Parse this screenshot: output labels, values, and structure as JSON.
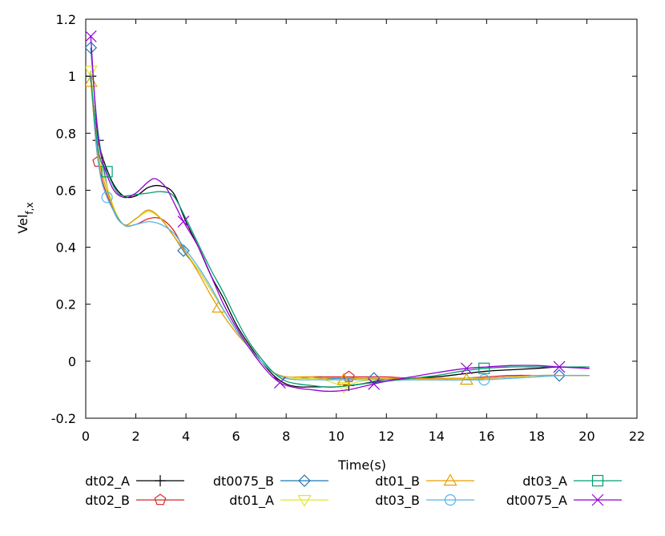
{
  "chart_data": {
    "type": "line",
    "title": "",
    "xlabel": "Time(s)",
    "ylabel_main": "Vel",
    "ylabel_sub": "f,x",
    "xlim": [
      0,
      22
    ],
    "ylim": [
      -0.2,
      1.2
    ],
    "x_ticks": [
      0,
      2,
      4,
      6,
      8,
      10,
      12,
      14,
      16,
      18,
      20,
      22
    ],
    "y_ticks": [
      -0.2,
      0,
      0.2,
      0.4,
      0.6,
      0.8,
      1.0,
      1.2
    ],
    "x_tick_labels": [
      "0",
      "2",
      "4",
      "6",
      "8",
      "10",
      "12",
      "14",
      "16",
      "18",
      "20",
      "22"
    ],
    "y_tick_labels": [
      "-0.2",
      "0",
      "0.2",
      "0.4",
      "0.6",
      "0.8",
      "1",
      "1.2"
    ],
    "grid": false,
    "legend_position": "bottom",
    "series": [
      {
        "name": "dt02_A",
        "color": "#000000",
        "marker": "plus",
        "x": [
          0.2,
          0.5,
          1.0,
          1.5,
          2.0,
          2.5,
          3.0,
          3.5,
          4.0,
          4.5,
          5.0,
          5.5,
          6.0,
          6.5,
          7.0,
          7.5,
          8.0,
          8.5,
          9.0,
          9.5,
          10.0,
          10.5,
          11.0,
          12.0,
          13.0,
          14.0,
          15.0,
          16.0,
          17.0,
          18.0,
          19.0,
          20.1
        ],
        "y": [
          1.0,
          0.775,
          0.64,
          0.58,
          0.58,
          0.61,
          0.615,
          0.59,
          0.49,
          0.4,
          0.3,
          0.22,
          0.13,
          0.06,
          0.0,
          -0.05,
          -0.08,
          -0.09,
          -0.09,
          -0.09,
          -0.09,
          -0.085,
          -0.08,
          -0.065,
          -0.06,
          -0.055,
          -0.045,
          -0.035,
          -0.03,
          -0.025,
          -0.02,
          -0.025
        ],
        "markers_x": [
          0.2,
          0.5,
          10.5
        ]
      },
      {
        "name": "dt02_B",
        "color": "#d62728",
        "marker": "pentagon",
        "x": [
          0.2,
          0.5,
          1.0,
          1.5,
          2.0,
          2.5,
          3.0,
          3.5,
          4.0,
          4.5,
          5.0,
          5.5,
          6.0,
          6.5,
          7.0,
          7.5,
          8.0,
          8.5,
          9.0,
          9.5,
          10.0,
          10.5,
          11.0,
          12.0,
          13.0,
          14.0,
          15.0,
          16.0,
          17.0,
          18.0,
          19.0,
          20.1
        ],
        "y": [
          1.0,
          0.7,
          0.55,
          0.48,
          0.48,
          0.5,
          0.5,
          0.46,
          0.38,
          0.32,
          0.25,
          0.18,
          0.11,
          0.05,
          0.0,
          -0.04,
          -0.06,
          -0.06,
          -0.055,
          -0.055,
          -0.055,
          -0.055,
          -0.055,
          -0.055,
          -0.06,
          -0.06,
          -0.06,
          -0.055,
          -0.05,
          -0.05,
          -0.05,
          -0.05
        ],
        "markers_x": [
          0.5,
          10.5
        ]
      },
      {
        "name": "dt0075_B",
        "color": "#1f77b4",
        "marker": "diamond",
        "x": [
          0.2,
          0.5,
          1.0,
          1.5,
          2.0,
          2.5,
          3.0,
          3.5,
          4.0,
          4.5,
          5.0,
          5.5,
          6.0,
          6.5,
          7.0,
          7.5,
          8.0,
          8.5,
          9.0,
          9.5,
          10.0,
          10.5,
          11.0,
          11.5,
          12.0,
          13.0,
          14.0,
          15.0,
          16.0,
          17.0,
          18.0,
          19.0,
          20.1
        ],
        "y": [
          1.1,
          0.8,
          0.56,
          0.48,
          0.5,
          0.53,
          0.5,
          0.44,
          0.375,
          0.32,
          0.25,
          0.18,
          0.11,
          0.05,
          0.0,
          -0.04,
          -0.06,
          -0.06,
          -0.06,
          -0.06,
          -0.06,
          -0.06,
          -0.06,
          -0.06,
          -0.065,
          -0.065,
          -0.065,
          -0.065,
          -0.06,
          -0.055,
          -0.05,
          -0.05,
          -0.05
        ],
        "markers_x": [
          0.2,
          3.9,
          11.5,
          18.9
        ]
      },
      {
        "name": "dt01_A",
        "color": "#e5e52e",
        "marker": "triangle-down",
        "x": [
          0.2,
          0.5,
          1.0,
          1.5,
          2.0,
          2.5,
          3.0,
          3.5,
          4.0,
          4.5,
          5.0,
          5.5,
          6.0,
          6.5,
          7.0,
          7.5,
          8.0,
          8.5,
          9.0,
          9.5,
          10.0,
          10.3,
          10.6,
          11.0,
          12.0,
          13.0,
          14.0,
          15.0,
          16.0,
          17.0,
          18.0,
          19.0,
          20.1
        ],
        "y": [
          1.02,
          0.75,
          0.57,
          0.48,
          0.5,
          0.525,
          0.5,
          0.44,
          0.38,
          0.32,
          0.25,
          0.18,
          0.11,
          0.05,
          0.0,
          -0.04,
          -0.06,
          -0.06,
          -0.06,
          -0.065,
          -0.08,
          -0.09,
          -0.08,
          -0.07,
          -0.065,
          -0.065,
          -0.065,
          -0.06,
          -0.06,
          -0.055,
          -0.05,
          -0.05,
          -0.05
        ],
        "markers_x": [
          0.2,
          10.3
        ]
      },
      {
        "name": "dt01_B",
        "color": "#e69f00",
        "marker": "triangle-up",
        "x": [
          0.2,
          0.5,
          1.0,
          1.5,
          2.0,
          2.5,
          3.0,
          3.5,
          4.0,
          4.5,
          5.0,
          5.5,
          6.0,
          6.5,
          7.0,
          7.5,
          8.0,
          8.5,
          9.0,
          9.5,
          10.0,
          10.3,
          11.0,
          12.0,
          13.0,
          14.0,
          15.0,
          15.2,
          16.0,
          17.0,
          18.0,
          19.0,
          20.1
        ],
        "y": [
          0.98,
          0.72,
          0.56,
          0.48,
          0.5,
          0.53,
          0.5,
          0.44,
          0.38,
          0.31,
          0.23,
          0.16,
          0.1,
          0.05,
          0.0,
          -0.04,
          -0.055,
          -0.055,
          -0.055,
          -0.06,
          -0.065,
          -0.065,
          -0.06,
          -0.06,
          -0.06,
          -0.06,
          -0.06,
          -0.065,
          -0.06,
          -0.055,
          -0.05,
          -0.05,
          -0.05
        ],
        "markers_x": [
          0.2,
          5.3,
          10.3,
          15.2
        ]
      },
      {
        "name": "dt03_B",
        "color": "#56b4e9",
        "marker": "circle",
        "x": [
          0.2,
          0.5,
          0.85,
          1.5,
          2.0,
          2.5,
          3.0,
          3.5,
          4.0,
          4.5,
          5.0,
          5.5,
          6.0,
          6.5,
          7.0,
          7.5,
          8.0,
          8.5,
          9.0,
          9.5,
          10.0,
          11.0,
          12.0,
          13.0,
          14.0,
          15.0,
          15.9,
          17.0,
          18.0,
          19.0,
          20.1
        ],
        "y": [
          1.0,
          0.7,
          0.575,
          0.48,
          0.48,
          0.49,
          0.48,
          0.45,
          0.39,
          0.33,
          0.26,
          0.18,
          0.11,
          0.05,
          0.0,
          -0.04,
          -0.06,
          -0.065,
          -0.065,
          -0.065,
          -0.065,
          -0.065,
          -0.065,
          -0.065,
          -0.065,
          -0.065,
          -0.065,
          -0.06,
          -0.055,
          -0.05,
          -0.05
        ],
        "markers_x": [
          0.85,
          15.9
        ]
      },
      {
        "name": "dt03_A",
        "color": "#009e73",
        "marker": "square",
        "x": [
          0.2,
          0.5,
          0.85,
          1.2,
          1.5,
          2.0,
          2.5,
          3.0,
          3.5,
          4.0,
          4.5,
          5.0,
          5.5,
          6.0,
          6.5,
          7.0,
          7.5,
          8.0,
          8.5,
          9.0,
          9.5,
          10.0,
          11.0,
          12.0,
          13.0,
          14.0,
          15.0,
          15.9,
          17.0,
          18.0,
          19.0,
          20.1
        ],
        "y": [
          1.0,
          0.74,
          0.665,
          0.6,
          0.58,
          0.585,
          0.59,
          0.595,
          0.58,
          0.5,
          0.41,
          0.32,
          0.24,
          0.15,
          0.07,
          0.01,
          -0.04,
          -0.07,
          -0.08,
          -0.085,
          -0.09,
          -0.09,
          -0.08,
          -0.07,
          -0.06,
          -0.05,
          -0.035,
          -0.025,
          -0.02,
          -0.02,
          -0.02,
          -0.02
        ],
        "markers_x": [
          0.85,
          15.9
        ]
      },
      {
        "name": "dt0075_A",
        "color": "#9400d3",
        "marker": "cross",
        "x": [
          0.2,
          0.5,
          1.0,
          1.5,
          2.0,
          2.5,
          2.8,
          3.2,
          3.5,
          3.9,
          4.5,
          5.0,
          5.5,
          6.0,
          6.5,
          7.0,
          7.4,
          7.75,
          8.0,
          8.5,
          9.0,
          9.5,
          10.0,
          10.5,
          11.0,
          11.5,
          12.0,
          13.0,
          14.0,
          15.2,
          16.0,
          17.0,
          18.0,
          18.9,
          20.1
        ],
        "y": [
          1.14,
          0.78,
          0.62,
          0.575,
          0.59,
          0.63,
          0.64,
          0.61,
          0.56,
          0.49,
          0.4,
          0.3,
          0.2,
          0.12,
          0.05,
          -0.01,
          -0.05,
          -0.075,
          -0.085,
          -0.095,
          -0.1,
          -0.105,
          -0.105,
          -0.1,
          -0.09,
          -0.08,
          -0.07,
          -0.055,
          -0.04,
          -0.025,
          -0.02,
          -0.015,
          -0.015,
          -0.02,
          -0.025
        ],
        "markers_x": [
          0.2,
          3.9,
          7.75,
          11.5,
          15.2,
          18.9
        ]
      }
    ],
    "legend_order": [
      "dt02_A",
      "dt0075_B",
      "dt01_B",
      "dt03_A",
      "dt02_B",
      "dt01_A",
      "dt03_B",
      "dt0075_A"
    ]
  }
}
